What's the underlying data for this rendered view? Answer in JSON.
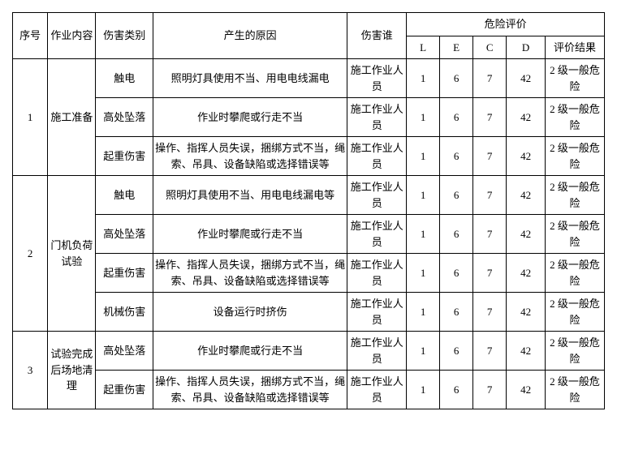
{
  "type": "table",
  "headers": {
    "seq": "序号",
    "work_content": "作业内容",
    "hazard_type": "伤害类别",
    "reason": "产生的原因",
    "who": "伤害谁",
    "risk_eval": "危险评价",
    "l": "L",
    "e": "E",
    "c": "C",
    "d": "D",
    "result": "评价结果"
  },
  "groups": [
    {
      "seq": "1",
      "work": "施工准备",
      "rows": [
        {
          "type": "触电",
          "reason": "照明灯具使用不当、用电电线漏电",
          "who": "施工作业人员",
          "l": "1",
          "e": "6",
          "c": "7",
          "d": "42",
          "result": "2 级一般危险"
        },
        {
          "type": "高处坠落",
          "reason": "作业时攀爬或行走不当",
          "who": "施工作业人员",
          "l": "1",
          "e": "6",
          "c": "7",
          "d": "42",
          "result": "2 级一般危险"
        },
        {
          "type": "起重伤害",
          "reason": "操作、指挥人员失误，捆绑方式不当，绳索、吊具、设备缺陷或选择错误等",
          "who": "施工作业人员",
          "l": "1",
          "e": "6",
          "c": "7",
          "d": "42",
          "result": "2 级一般危险"
        }
      ]
    },
    {
      "seq": "2",
      "work": "门机负荷试验",
      "rows": [
        {
          "type": "触电",
          "reason": "照明灯具使用不当、用电电线漏电等",
          "who": "施工作业人员",
          "l": "1",
          "e": "6",
          "c": "7",
          "d": "42",
          "result": "2 级一般危险"
        },
        {
          "type": "高处坠落",
          "reason": "作业时攀爬或行走不当",
          "who": "施工作业人员",
          "l": "1",
          "e": "6",
          "c": "7",
          "d": "42",
          "result": "2 级一般危险"
        },
        {
          "type": "起重伤害",
          "reason": "操作、指挥人员失误，捆绑方式不当，绳索、吊具、设备缺陷或选择错误等",
          "who": "施工作业人员",
          "l": "1",
          "e": "6",
          "c": "7",
          "d": "42",
          "result": "2 级一般危险"
        },
        {
          "type": "机械伤害",
          "reason": "设备运行时挤伤",
          "who": "施工作业人员",
          "l": "1",
          "e": "6",
          "c": "7",
          "d": "42",
          "result": "2 级一般危险"
        }
      ]
    },
    {
      "seq": "3",
      "work": "试验完成后场地清理",
      "rows": [
        {
          "type": "高处坠落",
          "reason": "作业时攀爬或行走不当",
          "who": "施工作业人员",
          "l": "1",
          "e": "6",
          "c": "7",
          "d": "42",
          "result": "2 级一般危险"
        },
        {
          "type": "起重伤害",
          "reason": "操作、指挥人员失误，捆绑方式不当，绳索、吊具、设备缺陷或选择错误等",
          "who": "施工作业人员",
          "l": "1",
          "e": "6",
          "c": "7",
          "d": "42",
          "result": "2 级一般危险"
        }
      ]
    }
  ],
  "colors": {
    "border": "#000000",
    "background": "#ffffff",
    "text": "#000000"
  },
  "font_size": 13
}
